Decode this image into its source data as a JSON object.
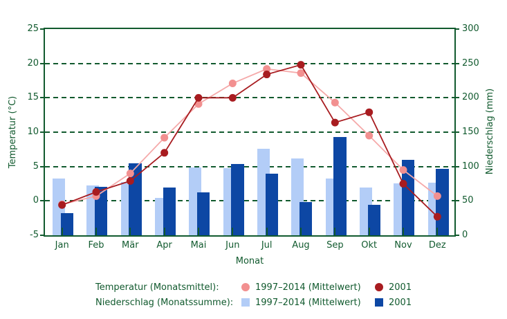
{
  "colors": {
    "axis_green": "#115a2e",
    "temp_mean_line": "#f5a9a9",
    "temp_mean_marker": "#f29090",
    "temp_2001": "#a81c20",
    "precip_mean": "#b3cdf7",
    "precip_2001": "#0d47a4",
    "background": "#ffffff"
  },
  "chart_data": {
    "type": "combo-bar-line",
    "title": "",
    "categories": [
      "Jan",
      "Feb",
      "Mär",
      "Apr",
      "Mai",
      "Jun",
      "Jul",
      "Aug",
      "Sep",
      "Okt",
      "Nov",
      "Dez"
    ],
    "xlabel": "Monat",
    "y_left": {
      "label": "Temperatur (°C)",
      "min": -5,
      "max": 25,
      "ticks": [
        25,
        20,
        15,
        10,
        5,
        0,
        -5
      ]
    },
    "y_right": {
      "label": "Niederschlag (mm)",
      "min": 0,
      "max": 300,
      "ticks": [
        300,
        250,
        200,
        150,
        100,
        50,
        0
      ]
    },
    "grid": {
      "style": "dashed-horizontal",
      "at_temp_values": [
        20,
        15,
        10,
        5,
        0
      ]
    },
    "series": [
      {
        "name": "Temperatur 1997–2014 (Mittelwert)",
        "type": "line",
        "axis": "left",
        "line_color": "#f5a9a9",
        "marker_color": "#f29090",
        "marker": "circle",
        "values": [
          -0.5,
          0.7,
          4.0,
          9.2,
          14.1,
          17.1,
          19.2,
          18.6,
          14.3,
          9.5,
          4.5,
          0.7
        ]
      },
      {
        "name": "Temperatur 2001",
        "type": "line",
        "axis": "left",
        "line_color": "#a81c20",
        "marker_color": "#a81c20",
        "marker": "circle",
        "values": [
          -0.6,
          1.3,
          2.9,
          7.0,
          15.0,
          15.0,
          18.4,
          19.8,
          11.4,
          12.9,
          2.5,
          -2.3
        ]
      },
      {
        "name": "Niederschlag 1997–2014 (Mittelwert)",
        "type": "bar",
        "axis": "right",
        "color": "#b3cdf7",
        "values": [
          83,
          72,
          78,
          54,
          99,
          98,
          126,
          112,
          83,
          69,
          76,
          77
        ]
      },
      {
        "name": "Niederschlag 2001",
        "type": "bar",
        "axis": "right",
        "color": "#0d47a4",
        "values": [
          32,
          70,
          105,
          69,
          62,
          104,
          90,
          48,
          143,
          44,
          110,
          97
        ]
      }
    ],
    "legend_position": "bottom"
  },
  "legend": {
    "rows": [
      {
        "label": "Temperatur (Monatsmittel):",
        "entries": [
          {
            "marker": "circle",
            "color": "#f29090",
            "text": "1997–2014 (Mittelwert)"
          },
          {
            "marker": "circle",
            "color": "#a81c20",
            "text": "2001"
          }
        ]
      },
      {
        "label": "Niederschlag (Monatssumme):",
        "entries": [
          {
            "marker": "square",
            "color": "#b3cdf7",
            "text": "1997–2014 (Mittelwert)"
          },
          {
            "marker": "square",
            "color": "#0d47a4",
            "text": "2001"
          }
        ]
      }
    ]
  }
}
